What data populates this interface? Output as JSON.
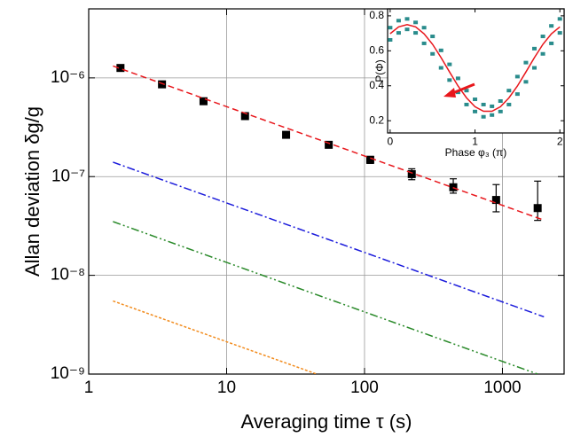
{
  "chart_data": [
    {
      "type": "scatter",
      "x_label": "Averaging time τ (s)",
      "y_label": "Allan deviation δg/g",
      "xlog": true,
      "ylog": true,
      "xlim": [
        1,
        2800
      ],
      "ylim": [
        1e-09,
        5e-06
      ],
      "xticks": [
        1,
        10,
        100,
        1000
      ],
      "yticks": [
        {
          "value": 1e-09,
          "label": "10⁻⁹"
        },
        {
          "value": 1e-08,
          "label": "10⁻⁸"
        },
        {
          "value": 1e-07,
          "label": "10⁻⁷"
        },
        {
          "value": 1e-06,
          "label": "10⁻⁶"
        }
      ],
      "grid": true,
      "series": [
        {
          "color": "#000000",
          "marker": "square",
          "x": [
            1.7,
            3.4,
            6.8,
            13.6,
            27,
            55,
            110,
            220,
            440,
            900,
            1800
          ],
          "values": [
            1.26e-06,
            8.6e-07,
            5.8e-07,
            4.1e-07,
            2.65e-07,
            2.1e-07,
            1.48e-07,
            1.06e-07,
            7.8e-08,
            5.8e-08,
            4.8e-08
          ],
          "yerr_low": [
            null,
            null,
            null,
            null,
            null,
            null,
            1.2e-08,
            1.3e-08,
            1e-08,
            1.4e-08,
            1.2e-08
          ],
          "yerr_high": [
            null,
            null,
            null,
            null,
            null,
            null,
            1.2e-08,
            1.4e-08,
            1.7e-08,
            2.5e-08,
            4.2e-08
          ]
        },
        {
          "color": "#e8171c",
          "dash": "7,4",
          "x": [
            1.5,
            2000
          ],
          "values": [
            1.32e-06,
            3.62e-08
          ]
        },
        {
          "color": "#1a1adb",
          "dash": "9,3,2,3",
          "x": [
            1.5,
            2000
          ],
          "values": [
            1.4e-07,
            3.8e-09
          ]
        },
        {
          "color": "#2a8a2a",
          "dash": "9,3,2,3,2,3",
          "x": [
            1.5,
            1800
          ],
          "values": [
            3.5e-08,
            1e-09
          ]
        },
        {
          "color": "#f28c1e",
          "dash": "3,2",
          "x": [
            1.5,
            45
          ],
          "values": [
            5.5e-09,
            1e-09
          ]
        }
      ]
    },
    {
      "type": "scatter",
      "x_label": "Phase φ₃ (π)",
      "y_label": "P(Φ)",
      "xlim": [
        -0.03,
        2.05
      ],
      "ylim": [
        0.13,
        0.84
      ],
      "xticks": [
        0,
        1,
        2
      ],
      "yticks": [
        0.2,
        0.4,
        0.6,
        0.8
      ],
      "series": [
        {
          "color": "#2a8c8c",
          "marker": "square",
          "x": [
            0,
            0,
            0.1,
            0.1,
            0.2,
            0.2,
            0.3,
            0.3,
            0.4,
            0.4,
            0.5,
            0.5,
            0.6,
            0.6,
            0.7,
            0.7,
            0.8,
            0.8,
            0.9,
            0.9,
            1.0,
            1.0,
            1.1,
            1.1,
            1.2,
            1.2,
            1.3,
            1.3,
            1.4,
            1.4,
            1.5,
            1.5,
            1.6,
            1.6,
            1.7,
            1.7,
            1.8,
            1.8,
            1.9,
            1.9,
            2.0,
            2.0
          ],
          "values": [
            0.66,
            0.73,
            0.7,
            0.77,
            0.72,
            0.78,
            0.7,
            0.76,
            0.64,
            0.73,
            0.58,
            0.68,
            0.5,
            0.6,
            0.43,
            0.52,
            0.36,
            0.44,
            0.29,
            0.37,
            0.25,
            0.32,
            0.22,
            0.29,
            0.23,
            0.28,
            0.25,
            0.31,
            0.29,
            0.37,
            0.35,
            0.45,
            0.42,
            0.53,
            0.5,
            0.61,
            0.58,
            0.68,
            0.64,
            0.74,
            0.7,
            0.78
          ]
        },
        {
          "color": "#e8171c",
          "x": [
            0,
            0.1,
            0.2,
            0.3,
            0.4,
            0.5,
            0.6,
            0.7,
            0.8,
            0.9,
            1.0,
            1.1,
            1.2,
            1.3,
            1.4,
            1.5,
            1.6,
            1.7,
            1.8,
            1.9,
            2.0
          ],
          "values": [
            0.698,
            0.737,
            0.75,
            0.737,
            0.697,
            0.637,
            0.561,
            0.479,
            0.399,
            0.331,
            0.28,
            0.254,
            0.254,
            0.28,
            0.331,
            0.399,
            0.479,
            0.561,
            0.637,
            0.697,
            0.737
          ]
        }
      ]
    }
  ]
}
